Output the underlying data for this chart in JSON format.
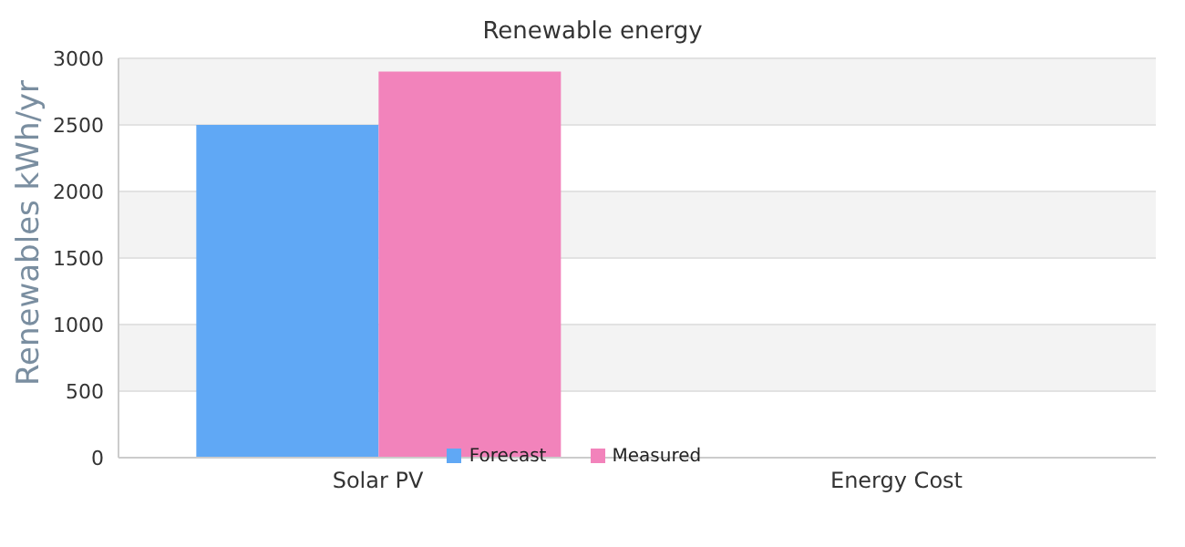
{
  "chart_data": {
    "type": "bar",
    "title": "Renewable energy",
    "ylabel": "Renewables  kWh/yr",
    "categories": [
      "Solar PV",
      "Energy Cost"
    ],
    "series": [
      {
        "name": "Forecast",
        "color": "#60a8f5",
        "values": [
          2500,
          null
        ]
      },
      {
        "name": "Measured",
        "color": "#f283bb",
        "values": [
          2900,
          null
        ]
      }
    ],
    "ylim": [
      0,
      3000
    ],
    "yticks": [
      0,
      500,
      1000,
      1500,
      2000,
      2500,
      3000
    ],
    "grid": "y",
    "legend": "bottom"
  }
}
